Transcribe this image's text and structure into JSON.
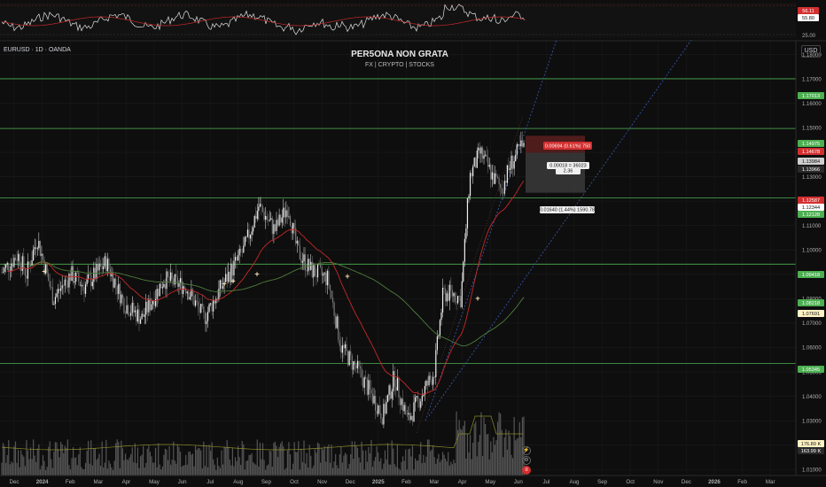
{
  "header": {
    "symbol": "EURUSD · 1D · OANDA",
    "title": "PER5ONA NON GRATA",
    "subtitle": "FX | CRYPTO | STOCKS",
    "currency": "USD"
  },
  "chart_data": {
    "type": "candlestick",
    "x_ticks": [
      "Dec",
      "2024",
      "Feb",
      "Mar",
      "Apr",
      "May",
      "Jun",
      "Jul",
      "Aug",
      "Sep",
      "Oct",
      "Nov",
      "Dec",
      "2025",
      "Feb",
      "Mar",
      "Apr",
      "May",
      "Jun",
      "Jul",
      "Aug",
      "Sep",
      "Oct",
      "Nov",
      "Dec",
      "2026",
      "Feb",
      "Mar"
    ],
    "y_ticks": [
      "1.18000",
      "1.17000",
      "1.16000",
      "1.15000",
      "1.14000",
      "1.13000",
      "1.12000",
      "1.11000",
      "1.10000",
      "1.09000",
      "1.08000",
      "1.07000",
      "1.06000",
      "1.05000",
      "1.04000",
      "1.03000",
      "1.02000",
      "1.01000"
    ],
    "ylim": [
      1.0076,
      1.1857
    ],
    "horizontal_levels": [
      1.17013,
      1.14975,
      1.12128,
      1.09418,
      1.05345
    ],
    "price_labels": [
      {
        "text": "1.17013",
        "color": "#4caf50"
      },
      {
        "text": "1.14975",
        "color": "#4caf50"
      },
      {
        "text": "1.14678",
        "color": "#d32f2f"
      },
      {
        "text": "1.13984",
        "color": "#cfcfcf"
      },
      {
        "text": "1.13966",
        "color": "#2a2a2a"
      },
      {
        "text": "1.12587",
        "color": "#d32f2f"
      },
      {
        "text": "1.12344",
        "color": "#ffffff"
      },
      {
        "text": "1.12128",
        "color": "#4caf50"
      },
      {
        "text": "1.09418",
        "color": "#4caf50"
      },
      {
        "text": "1.08218",
        "color": "#4caf50"
      },
      {
        "text": "1.07691",
        "color": "#fff3c4"
      },
      {
        "text": "1.05345",
        "color": "#4caf50"
      },
      {
        "text": "176.89 K",
        "color": "#fff3c4"
      },
      {
        "text": "163.99 K",
        "color": "#2a2a2a"
      }
    ],
    "position_tool": {
      "stop_label": "0.00694 (0.61%) 750",
      "middle_label_1": "0.00018 = 36023",
      "middle_label_2": "2.36",
      "target_label": "0.01640 (1.44%) 1590.78"
    },
    "rsi": {
      "ticks": [
        "25.00"
      ],
      "value_labels": [
        {
          "text": "56.11",
          "color": "#d32f2f"
        },
        {
          "text": "55.80",
          "color": "#ffffff"
        }
      ]
    },
    "colors": {
      "ema_fast": "#c62828",
      "sma_slow": "#4f7d3a",
      "levels": "#4caf50",
      "trend": "#3b5bb5",
      "volume_ma": "#8a8a2a",
      "crossover_marker": "#f5deb3"
    }
  }
}
